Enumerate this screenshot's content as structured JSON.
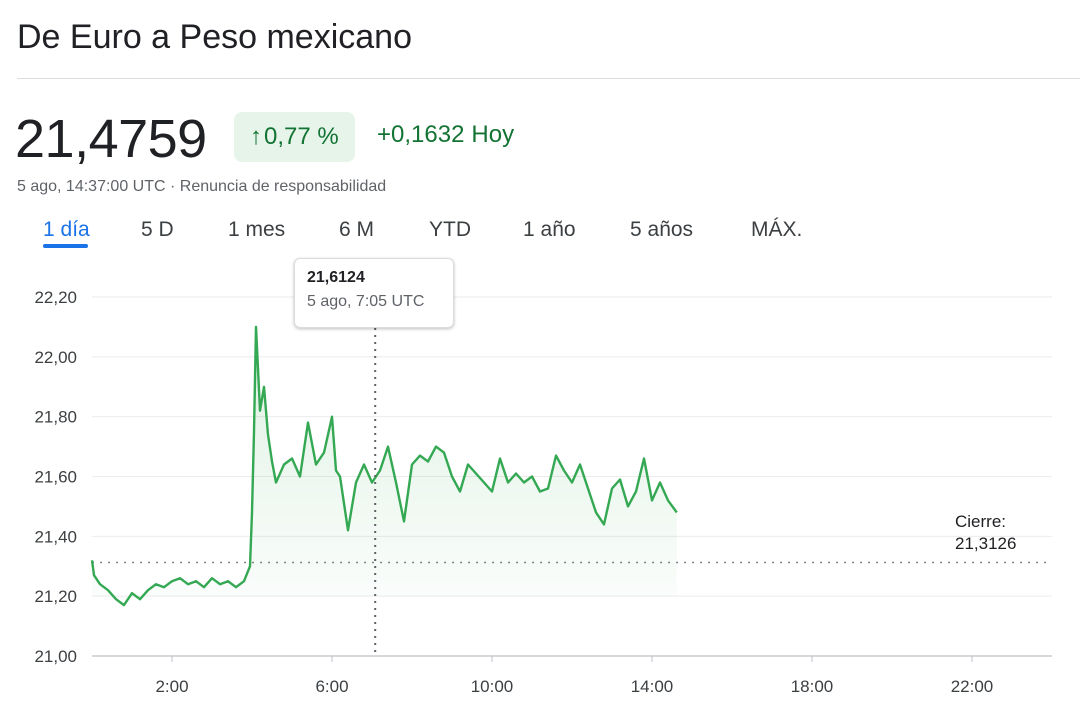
{
  "header": {
    "title": "De Euro a Peso mexicano"
  },
  "quote": {
    "price": "21,4759",
    "change_percent": "0,77 %",
    "change_arrow_icon": "arrow-up-icon",
    "change_value": "+0,1632",
    "change_period": "Hoy",
    "timestamp": "5 ago, 14:37:00 UTC",
    "separator": " · ",
    "disclaimer": "Renuncia de responsabilidad",
    "positive_color": "#137333"
  },
  "tabs": [
    {
      "label": "1 día",
      "active": true
    },
    {
      "label": "5 D",
      "active": false
    },
    {
      "label": "1 mes",
      "active": false
    },
    {
      "label": "6 M",
      "active": false
    },
    {
      "label": "YTD",
      "active": false
    },
    {
      "label": "1 año",
      "active": false
    },
    {
      "label": "5 años",
      "active": false
    },
    {
      "label": "MÁX.",
      "active": false
    }
  ],
  "tooltip": {
    "value": "21,6124",
    "time": "5 ago, 7:05 UTC"
  },
  "close": {
    "label": "Cierre:",
    "value": "21,3126"
  },
  "chart_data": {
    "type": "line",
    "line_color": "#34a853",
    "ylim": [
      21.0,
      22.2
    ],
    "xlim": [
      0,
      24
    ],
    "y_ticks": [
      "21,00",
      "21,20",
      "21,40",
      "21,60",
      "21,80",
      "22,00",
      "22,20"
    ],
    "y_tick_values": [
      21.0,
      21.2,
      21.4,
      21.6,
      21.8,
      22.0,
      22.2
    ],
    "x_ticks": [
      "2:00",
      "6:00",
      "10:00",
      "14:00",
      "18:00",
      "22:00"
    ],
    "x_tick_values": [
      2,
      6,
      10,
      14,
      18,
      22
    ],
    "grid": true,
    "previous_close": 21.3126,
    "hover_x": 7.08,
    "hover_y": 21.6124,
    "series": [
      {
        "x": [
          0.0,
          0.05,
          0.2,
          0.4,
          0.6,
          0.8,
          1.0,
          1.2,
          1.4,
          1.6,
          1.8,
          2.0,
          2.2,
          2.4,
          2.6,
          2.8,
          3.0,
          3.2,
          3.4,
          3.6,
          3.8,
          3.95,
          4.0,
          4.05,
          4.1,
          4.2,
          4.3,
          4.4,
          4.5,
          4.6,
          4.8,
          5.0,
          5.2,
          5.4,
          5.6,
          5.8,
          6.0,
          6.1,
          6.2,
          6.4,
          6.6,
          6.8,
          7.0,
          7.2,
          7.4,
          7.6,
          7.8,
          8.0,
          8.2,
          8.4,
          8.6,
          8.8,
          9.0,
          9.2,
          9.4,
          9.6,
          9.8,
          10.0,
          10.2,
          10.4,
          10.6,
          10.8,
          11.0,
          11.2,
          11.4,
          11.6,
          11.8,
          12.0,
          12.2,
          12.4,
          12.6,
          12.8,
          13.0,
          13.2,
          13.4,
          13.6,
          13.8,
          14.0,
          14.2,
          14.4,
          14.62
        ],
        "y": [
          21.32,
          21.27,
          21.24,
          21.22,
          21.19,
          21.17,
          21.21,
          21.19,
          21.22,
          21.24,
          21.23,
          21.25,
          21.26,
          21.24,
          21.25,
          21.23,
          21.26,
          21.24,
          21.25,
          21.23,
          21.25,
          21.3,
          21.48,
          21.75,
          22.1,
          21.82,
          21.9,
          21.74,
          21.65,
          21.58,
          21.64,
          21.66,
          21.6,
          21.78,
          21.64,
          21.68,
          21.8,
          21.62,
          21.6,
          21.42,
          21.58,
          21.64,
          21.58,
          21.62,
          21.7,
          21.58,
          21.45,
          21.64,
          21.67,
          21.65,
          21.7,
          21.68,
          21.6,
          21.55,
          21.64,
          21.61,
          21.58,
          21.55,
          21.66,
          21.58,
          21.61,
          21.58,
          21.6,
          21.55,
          21.56,
          21.67,
          21.62,
          21.58,
          21.64,
          21.56,
          21.48,
          21.44,
          21.56,
          21.59,
          21.5,
          21.55,
          21.66,
          21.52,
          21.58,
          21.52,
          21.48
        ]
      }
    ]
  }
}
